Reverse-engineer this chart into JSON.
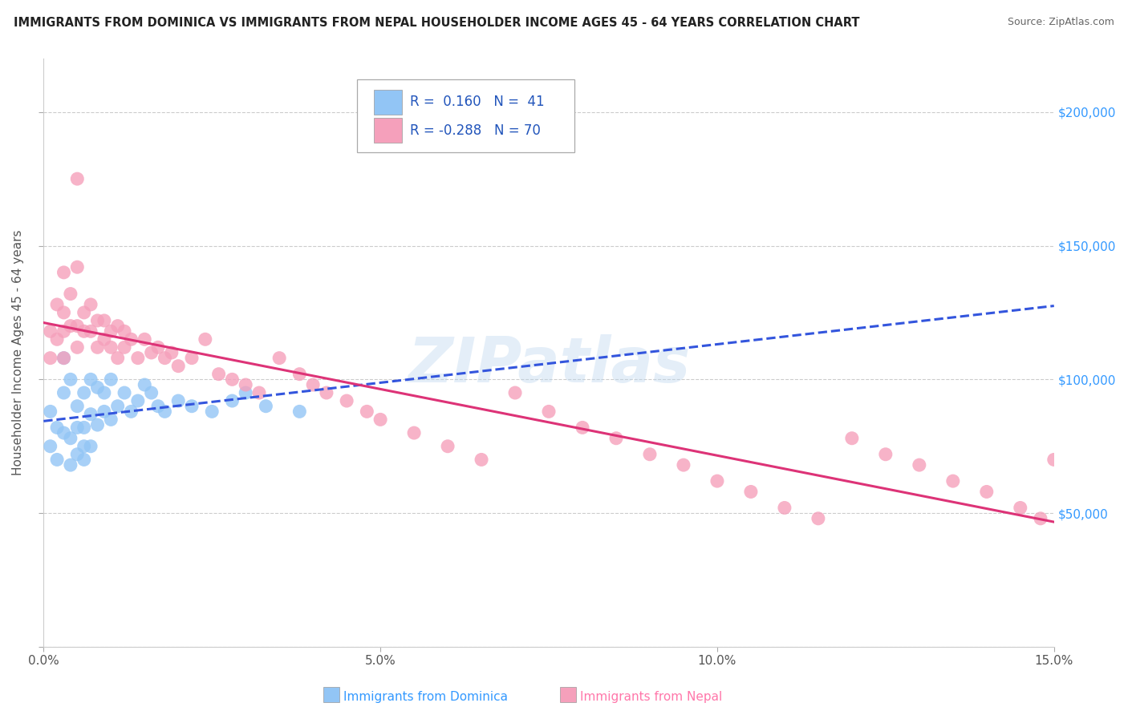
{
  "title": "IMMIGRANTS FROM DOMINICA VS IMMIGRANTS FROM NEPAL HOUSEHOLDER INCOME AGES 45 - 64 YEARS CORRELATION CHART",
  "source": "Source: ZipAtlas.com",
  "ylabel": "Householder Income Ages 45 - 64 years",
  "xlim": [
    0.0,
    0.15
  ],
  "ylim": [
    0,
    220000
  ],
  "xtick_vals": [
    0.0,
    0.05,
    0.1,
    0.15
  ],
  "xtick_labels": [
    "0.0%",
    "5.0%",
    "10.0%",
    "15.0%"
  ],
  "ytick_vals": [
    0,
    50000,
    100000,
    150000,
    200000
  ],
  "ytick_labels_left": [
    "",
    "",
    "",
    "",
    ""
  ],
  "ytick_labels_right": [
    "",
    "$50,000",
    "$100,000",
    "$150,000",
    "$200,000"
  ],
  "color_dominica": "#92c5f5",
  "color_nepal": "#f5a0bb",
  "line_color_dominica": "#3355dd",
  "line_color_nepal": "#dd3377",
  "background_color": "#ffffff",
  "grid_color": "#cccccc",
  "dominica_x": [
    0.001,
    0.001,
    0.002,
    0.002,
    0.003,
    0.003,
    0.003,
    0.004,
    0.004,
    0.004,
    0.005,
    0.005,
    0.005,
    0.006,
    0.006,
    0.006,
    0.006,
    0.007,
    0.007,
    0.007,
    0.008,
    0.008,
    0.009,
    0.009,
    0.01,
    0.01,
    0.011,
    0.012,
    0.013,
    0.014,
    0.015,
    0.016,
    0.017,
    0.018,
    0.02,
    0.022,
    0.025,
    0.028,
    0.03,
    0.033,
    0.038
  ],
  "dominica_y": [
    88000,
    75000,
    82000,
    70000,
    95000,
    80000,
    108000,
    100000,
    78000,
    68000,
    90000,
    82000,
    72000,
    95000,
    82000,
    75000,
    70000,
    100000,
    87000,
    75000,
    97000,
    83000,
    95000,
    88000,
    100000,
    85000,
    90000,
    95000,
    88000,
    92000,
    98000,
    95000,
    90000,
    88000,
    92000,
    90000,
    88000,
    92000,
    95000,
    90000,
    88000
  ],
  "nepal_x": [
    0.001,
    0.001,
    0.002,
    0.002,
    0.003,
    0.003,
    0.003,
    0.004,
    0.004,
    0.005,
    0.005,
    0.005,
    0.006,
    0.006,
    0.007,
    0.007,
    0.008,
    0.008,
    0.009,
    0.009,
    0.01,
    0.01,
    0.011,
    0.011,
    0.012,
    0.012,
    0.013,
    0.014,
    0.015,
    0.016,
    0.017,
    0.018,
    0.019,
    0.02,
    0.022,
    0.024,
    0.026,
    0.028,
    0.03,
    0.032,
    0.035,
    0.038,
    0.04,
    0.042,
    0.045,
    0.048,
    0.05,
    0.055,
    0.06,
    0.065,
    0.07,
    0.075,
    0.08,
    0.085,
    0.09,
    0.095,
    0.1,
    0.105,
    0.11,
    0.115,
    0.12,
    0.125,
    0.13,
    0.135,
    0.14,
    0.145,
    0.148,
    0.15,
    0.003,
    0.005
  ],
  "nepal_y": [
    118000,
    108000,
    128000,
    115000,
    125000,
    118000,
    108000,
    132000,
    120000,
    175000,
    120000,
    112000,
    125000,
    118000,
    128000,
    118000,
    122000,
    112000,
    122000,
    115000,
    118000,
    112000,
    120000,
    108000,
    118000,
    112000,
    115000,
    108000,
    115000,
    110000,
    112000,
    108000,
    110000,
    105000,
    108000,
    115000,
    102000,
    100000,
    98000,
    95000,
    108000,
    102000,
    98000,
    95000,
    92000,
    88000,
    85000,
    80000,
    75000,
    70000,
    95000,
    88000,
    82000,
    78000,
    72000,
    68000,
    62000,
    58000,
    52000,
    48000,
    78000,
    72000,
    68000,
    62000,
    58000,
    52000,
    48000,
    70000,
    140000,
    142000
  ]
}
